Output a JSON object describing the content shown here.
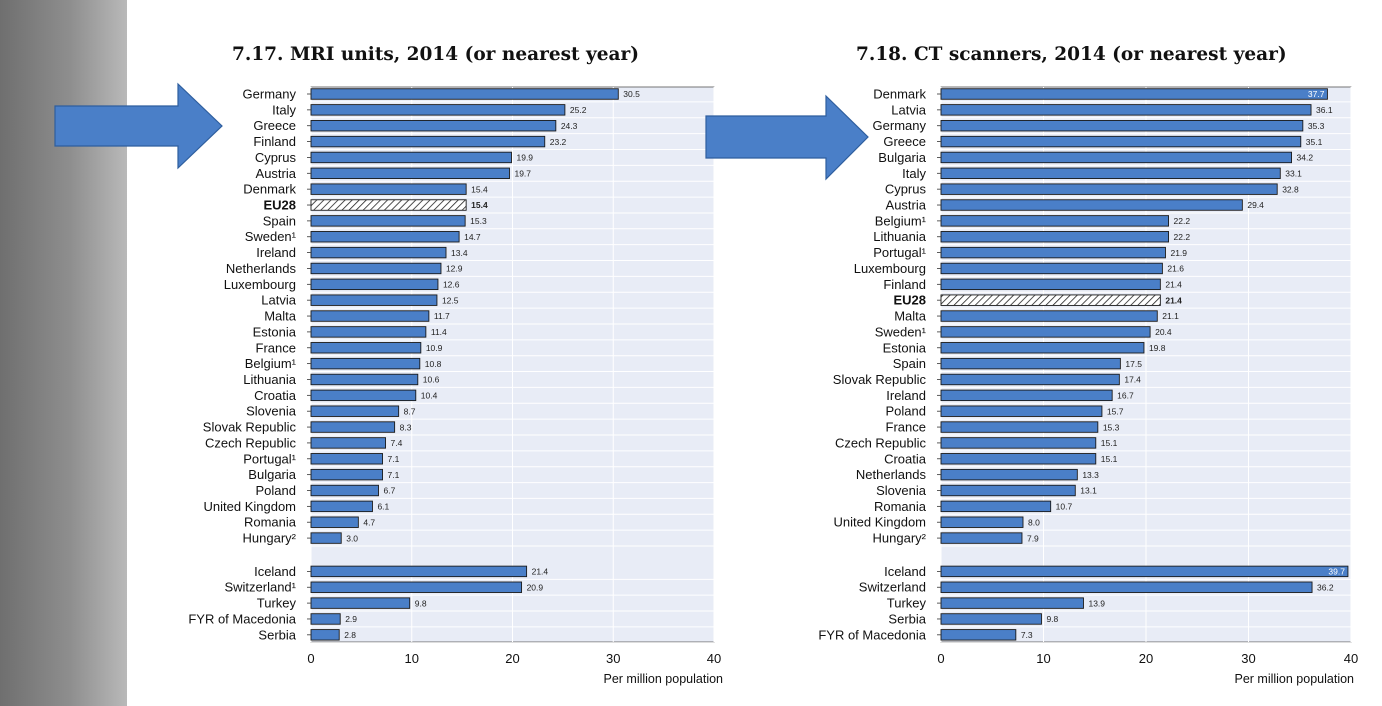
{
  "chart_data": [
    {
      "type": "bar",
      "orientation": "horizontal",
      "title": "7.17. MRI units, 2014 (or nearest year)",
      "xlabel": "Per million population",
      "xlim": [
        0,
        40
      ],
      "xticks": [
        0,
        10,
        20,
        30,
        40
      ],
      "grid": true,
      "categories": [
        "Germany",
        "Italy",
        "Greece",
        "Finland",
        "Cyprus",
        "Austria",
        "Denmark",
        "EU28",
        "Spain",
        "Sweden¹",
        "Ireland",
        "Netherlands",
        "Luxembourg",
        "Latvia",
        "Malta",
        "Estonia",
        "France",
        "Belgium¹",
        "Lithuania",
        "Croatia",
        "Slovenia",
        "Slovak Republic",
        "Czech Republic",
        "Portugal¹",
        "Bulgaria",
        "Poland",
        "United Kingdom",
        "Romania",
        "Hungary²",
        "Iceland",
        "Switzerland¹",
        "Turkey",
        "FYR of Macedonia",
        "Serbia"
      ],
      "values": [
        30.5,
        25.2,
        24.3,
        23.2,
        19.9,
        19.7,
        15.4,
        15.4,
        15.3,
        14.7,
        13.4,
        12.9,
        12.6,
        12.5,
        11.7,
        11.4,
        10.9,
        10.8,
        10.6,
        10.4,
        8.7,
        8.3,
        7.4,
        7.1,
        7.1,
        6.7,
        6.1,
        4.7,
        3.0,
        21.4,
        20.9,
        9.8,
        2.9,
        2.8
      ],
      "value_labels": [
        "30.5",
        "25.2",
        "24.3",
        "23.2",
        "19.9",
        "19.7",
        "15.4",
        "15.4",
        "15.3",
        "14.7",
        "13.4",
        "12.9",
        "12.6",
        "12.5",
        "11.7",
        "11.4",
        "10.9",
        "10.8",
        "10.6",
        "10.4",
        "8.7",
        "8.3",
        "7.4",
        "7.1",
        "7.1",
        "6.7",
        "6.1",
        "4.7",
        "3.0",
        "21.4",
        "20.9",
        "9.8",
        "2.9",
        "2.8"
      ],
      "highlight": "EU28",
      "group_break_after": "Hungary²",
      "bar_color": "#4a7fc8"
    },
    {
      "type": "bar",
      "orientation": "horizontal",
      "title": "7.18. CT scanners, 2014 (or nearest year)",
      "xlabel": "Per million population",
      "xlim": [
        0,
        40
      ],
      "xticks": [
        0,
        10,
        20,
        30,
        40
      ],
      "grid": true,
      "categories": [
        "Denmark",
        "Latvia",
        "Germany",
        "Greece",
        "Bulgaria",
        "Italy",
        "Cyprus",
        "Austria",
        "Belgium¹",
        "Lithuania",
        "Portugal¹",
        "Luxembourg",
        "Finland",
        "EU28",
        "Malta",
        "Sweden¹",
        "Estonia",
        "Spain",
        "Slovak Republic",
        "Ireland",
        "Poland",
        "France",
        "Czech Republic",
        "Croatia",
        "Netherlands",
        "Slovenia",
        "Romania",
        "United Kingdom",
        "Hungary²",
        "Iceland",
        "Switzerland",
        "Turkey",
        "Serbia",
        "FYR of Macedonia"
      ],
      "values": [
        37.7,
        36.1,
        35.3,
        35.1,
        34.2,
        33.1,
        32.8,
        29.4,
        22.2,
        22.2,
        21.9,
        21.6,
        21.4,
        21.4,
        21.1,
        20.4,
        19.8,
        17.5,
        17.4,
        16.7,
        15.7,
        15.3,
        15.1,
        15.1,
        13.3,
        13.1,
        10.7,
        8.0,
        7.9,
        39.7,
        36.2,
        13.9,
        9.8,
        7.3
      ],
      "value_labels": [
        "37.7",
        "36.1",
        "35.3",
        "35.1",
        "34.2",
        "33.1",
        "32.8",
        "29.4",
        "22.2",
        "22.2",
        "21.9",
        "21.6",
        "21.4",
        "21.4",
        "21.1",
        "20.4",
        "19.8",
        "17.5",
        "17.4",
        "16.7",
        "15.7",
        "15.3",
        "15.1",
        "15.1",
        "13.3",
        "13.1",
        "10.7",
        "8.0",
        "7.9",
        "39.7",
        "36.2",
        "13.9",
        "9.8",
        "7.3"
      ],
      "highlight": "EU28",
      "group_break_after": "Hungary²",
      "bar_color": "#4a7fc8"
    }
  ],
  "annotations": {
    "arrows": [
      "right-pointing-arrow",
      "right-pointing-arrow"
    ],
    "arrow_color": "#4a7fc8"
  },
  "colors": {
    "bar": "#4a7fc8",
    "bar_outline": "#1a1a1a",
    "plot_background": "#e8ecf6",
    "grid": "#ffffff",
    "side_bar": "#8e8e8e"
  }
}
